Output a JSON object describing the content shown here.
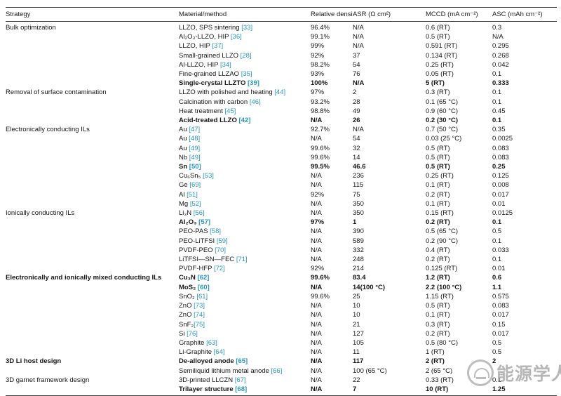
{
  "header": {
    "columns": [
      "Strategy",
      "Material/method",
      "Relative density",
      "ASR (Ω cm²)",
      "MCCD (mA cm⁻²)",
      "ASC (mAh cm⁻²)"
    ]
  },
  "colors": {
    "link": "#2e96b5"
  },
  "watermark": {
    "text": "能源学人"
  },
  "rows": [
    {
      "strategy": "Bulk optimization",
      "material": "LLZO, SPS sintering",
      "ref": "33",
      "density": "96.4%",
      "asr": "N/A",
      "mccd": "0.6 (RT)",
      "asc": "0.3",
      "bold": false
    },
    {
      "strategy": "",
      "material": "Al₂O₃-LLZO, HIP",
      "ref": "36",
      "density": "99.1%",
      "asr": "N/A",
      "mccd": "0.5 (RT)",
      "asc": "N/A",
      "bold": false
    },
    {
      "strategy": "",
      "material": "LLZO, HIP",
      "ref": "37",
      "density": "99%",
      "asr": "N/A",
      "mccd": "0.591 (RT)",
      "asc": "0.295",
      "bold": false
    },
    {
      "strategy": "",
      "material": "Small-grained LLZO",
      "ref": "28",
      "density": "92%",
      "asr": "37",
      "mccd": "0.134 (RT)",
      "asc": "0.268",
      "bold": false
    },
    {
      "strategy": "",
      "material": "Al-LLZO, HIP",
      "ref": "34",
      "density": "98.2%",
      "asr": "54",
      "mccd": "0.25 (RT)",
      "asc": "0.042",
      "bold": false
    },
    {
      "strategy": "",
      "material": "Fine-grained LLZAO",
      "ref": "35",
      "density": "93%",
      "asr": "76",
      "mccd": "0.05 (RT)",
      "asc": "0.1",
      "bold": false
    },
    {
      "strategy": "",
      "material": "Single-crystal LLZTO",
      "ref": "39",
      "density": "100%",
      "asr": "N/A",
      "mccd": "5 (RT)",
      "asc": "0.333",
      "bold": true
    },
    {
      "strategy": "Removal of surface contamination",
      "material": "LLZO with polished and heating",
      "ref": "44",
      "density": "97%",
      "asr": "2",
      "mccd": "0.3 (RT)",
      "asc": "0.1",
      "bold": false
    },
    {
      "strategy": "",
      "material": "Calcination with carbon",
      "ref": "46",
      "density": "93.2%",
      "asr": "28",
      "mccd": "0.1 (65 °C)",
      "asc": "0.1",
      "bold": false
    },
    {
      "strategy": "",
      "material": "Heat treatment",
      "ref": "45",
      "density": "98.8%",
      "asr": "49",
      "mccd": "0.9 (60 °C)",
      "asc": "0.45",
      "bold": false
    },
    {
      "strategy": "",
      "material": "Acid-treated LLZO",
      "ref": "42",
      "density": "N/A",
      "asr": "26",
      "mccd": "0.2 (30 °C)",
      "asc": "0.1",
      "bold": true
    },
    {
      "strategy": "Electronically conducting ILs",
      "material": "Au",
      "ref": "47",
      "density": "92.7%",
      "asr": "N/A",
      "mccd": "0.7 (50 °C)",
      "asc": "0.35",
      "bold": false
    },
    {
      "strategy": "",
      "material": "Au",
      "ref": "48",
      "density": "N/A",
      "asr": "54",
      "mccd": "0.03 (25 °C)",
      "asc": "0.0025",
      "bold": false
    },
    {
      "strategy": "",
      "material": "Au",
      "ref": "49",
      "density": "99.6%",
      "asr": "32",
      "mccd": "0.5 (RT)",
      "asc": "0.083",
      "bold": false
    },
    {
      "strategy": "",
      "material": "Nb",
      "ref": "49",
      "density": "99.6%",
      "asr": "14",
      "mccd": "0.5 (RT)",
      "asc": "0.083",
      "bold": false
    },
    {
      "strategy": "",
      "material": "Sn",
      "ref": "50",
      "density": "99.5%",
      "asr": "46.6",
      "mccd": "0.5 (RT)",
      "asc": "0.25",
      "bold": true
    },
    {
      "strategy": "",
      "material": "Cu₆Sn₅",
      "ref": "53",
      "density": "N/A",
      "asr": "236",
      "mccd": "0.25 (RT)",
      "asc": "0.125",
      "bold": false
    },
    {
      "strategy": "",
      "material": "Ge",
      "ref": "69",
      "density": "N/A",
      "asr": "115",
      "mccd": "0.1 (RT)",
      "asc": "0.008",
      "bold": false
    },
    {
      "strategy": "",
      "material": "Al",
      "ref": "51",
      "density": "92%",
      "asr": "75",
      "mccd": "0.2 (RT)",
      "asc": "0.017",
      "bold": false
    },
    {
      "strategy": "",
      "material": "Mg",
      "ref": "52",
      "density": "N/A",
      "asr": "350",
      "mccd": "0.1 (RT)",
      "asc": "0.01",
      "bold": false
    },
    {
      "strategy": "Ionically conducting ILs",
      "material": "Li₃N",
      "ref": "56",
      "density": "N/A",
      "asr": "350",
      "mccd": "0.15 (RT)",
      "asc": "0.0125",
      "bold": false
    },
    {
      "strategy": "",
      "material": "Al₂O₃",
      "ref": "57",
      "density": "97%",
      "asr": "1",
      "mccd": "0.2 (RT)",
      "asc": "0.1",
      "bold": true
    },
    {
      "strategy": "",
      "material": "PEO-PAS",
      "ref": "58",
      "density": "N/A",
      "asr": "390",
      "mccd": "0.5 (65 °C)",
      "asc": "0.5",
      "bold": false
    },
    {
      "strategy": "",
      "material": "PEO-LiTFSI",
      "ref": "59",
      "density": "N/A",
      "asr": "589",
      "mccd": "0.2 (90 °C)",
      "asc": "0.1",
      "bold": false
    },
    {
      "strategy": "",
      "material": "PVDF-PEO",
      "ref": "70",
      "density": "N/A",
      "asr": "332",
      "mccd": "0.4 (RT)",
      "asc": "0.033",
      "bold": false
    },
    {
      "strategy": "",
      "material": "LiTFSI—SN—FEC",
      "ref": "71",
      "density": "N/A",
      "asr": "248",
      "mccd": "0.2 (RT)",
      "asc": "0.1",
      "bold": false
    },
    {
      "strategy": "",
      "material": "PVDF-HFP",
      "ref": "72",
      "density": "92%",
      "asr": "214",
      "mccd": "0.125 (RT)",
      "asc": "0.01",
      "bold": false
    },
    {
      "strategy": "Electronically and ionically mixed conducting ILs",
      "material": "Cu₃N",
      "ref": "62",
      "density": "99.6%",
      "asr": "83.4",
      "mccd": "1.2 (RT)",
      "asc": "0.6",
      "bold": true
    },
    {
      "strategy": "",
      "material": "MoS₂",
      "ref": "60",
      "density": "N/A",
      "asr": "14(100 °C)",
      "mccd": "2.2 (100 °C)",
      "asc": "1.1",
      "bold": true
    },
    {
      "strategy": "",
      "material": "SnO₂",
      "ref": "61",
      "density": "99.6%",
      "asr": "25",
      "mccd": "1.15 (RT)",
      "asc": "0.575",
      "bold": false
    },
    {
      "strategy": "",
      "material": "ZnO",
      "ref": "73",
      "density": "N/A",
      "asr": "10",
      "mccd": "0.5 (RT)",
      "asc": "0.083",
      "bold": false
    },
    {
      "strategy": "",
      "material": "ZnO",
      "ref": "74",
      "density": "N/A",
      "asr": "10",
      "mccd": "0.1 (RT)",
      "asc": "0.017",
      "bold": false
    },
    {
      "strategy": "",
      "material": "SnF₂",
      "ref": "75",
      "nospace": true,
      "density": "N/A",
      "asr": "21",
      "mccd": "0.3 (RT)",
      "asc": "0.15",
      "bold": false
    },
    {
      "strategy": "",
      "material": "Si",
      "ref": "76",
      "density": "N/A",
      "asr": "127",
      "mccd": "0.2 (RT)",
      "asc": "0.017",
      "bold": false
    },
    {
      "strategy": "",
      "material": "Graphite",
      "ref": "63",
      "density": "N/A",
      "asr": "105",
      "mccd": "0.5 (80 °C)",
      "asc": "0.5",
      "bold": false
    },
    {
      "strategy": "",
      "material": "Li-Graphite",
      "ref": "64",
      "density": "N/A",
      "asr": "11",
      "mccd": "1 (RT)",
      "asc": "0.5",
      "bold": false
    },
    {
      "strategy": "3D Li host design",
      "material": "De-alloyed anode",
      "ref": "65",
      "density": "N/A",
      "asr": "117",
      "mccd": "2 (RT)",
      "asc": "2",
      "bold": true
    },
    {
      "strategy": "",
      "material": "Semiliquid lithium metal anode",
      "ref": "66",
      "density": "N/A",
      "asr": "100 (65 °C)",
      "mccd": "2 (65 °C)",
      "asc": "",
      "bold": false
    },
    {
      "strategy": "3D garnet framework design",
      "material": "3D-printed LLCZN",
      "ref": "67",
      "density": "N/A",
      "asr": "22",
      "mccd": "0.33 (RT)",
      "asc": "0.1",
      "bold": false
    },
    {
      "strategy": "",
      "material": "Trilayer structure",
      "ref": "68",
      "density": "N/A",
      "asr": "7",
      "mccd": "10 (RT)",
      "asc": "1.25",
      "bold": true
    }
  ]
}
